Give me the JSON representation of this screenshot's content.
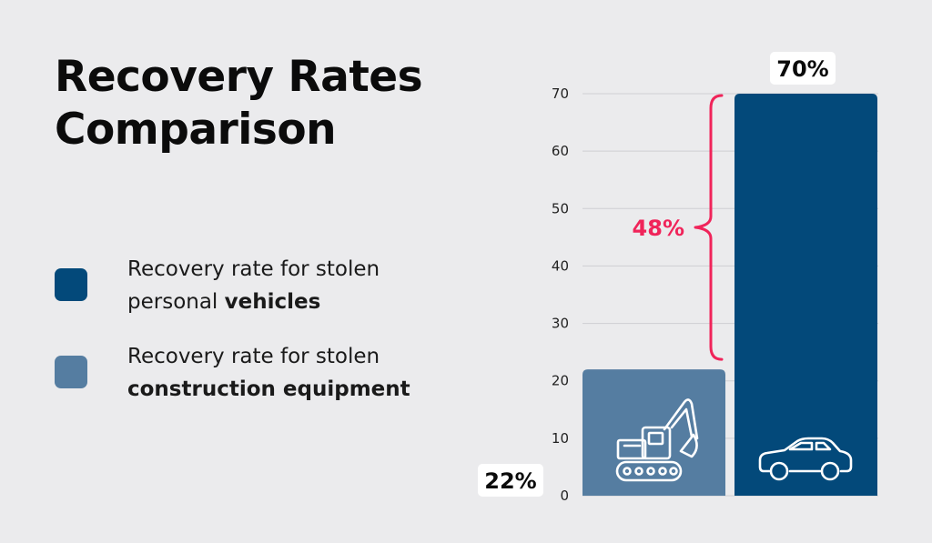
{
  "title_lines": [
    "Recovery Rates",
    "Comparison"
  ],
  "legend": [
    {
      "text_plain": "Recovery rate for stolen personal ",
      "text_bold": "vehicles",
      "color": "#03497a"
    },
    {
      "text_plain": "Recovery rate for stolen ",
      "text_bold": "construction equipment",
      "color": "#557da1"
    }
  ],
  "chart_data": {
    "type": "bar",
    "categories": [
      "construction equipment",
      "vehicles"
    ],
    "values": [
      22,
      70
    ],
    "data_labels": [
      "22%",
      "70%"
    ],
    "colors": [
      "#557da1",
      "#03497a"
    ],
    "icons": [
      "excavator-icon",
      "car-icon"
    ],
    "ylim": [
      0,
      70
    ],
    "yticks": [
      0,
      10,
      20,
      30,
      40,
      50,
      60,
      70
    ],
    "grid": true,
    "difference_label": "48%",
    "difference_color": "#f0245a"
  }
}
